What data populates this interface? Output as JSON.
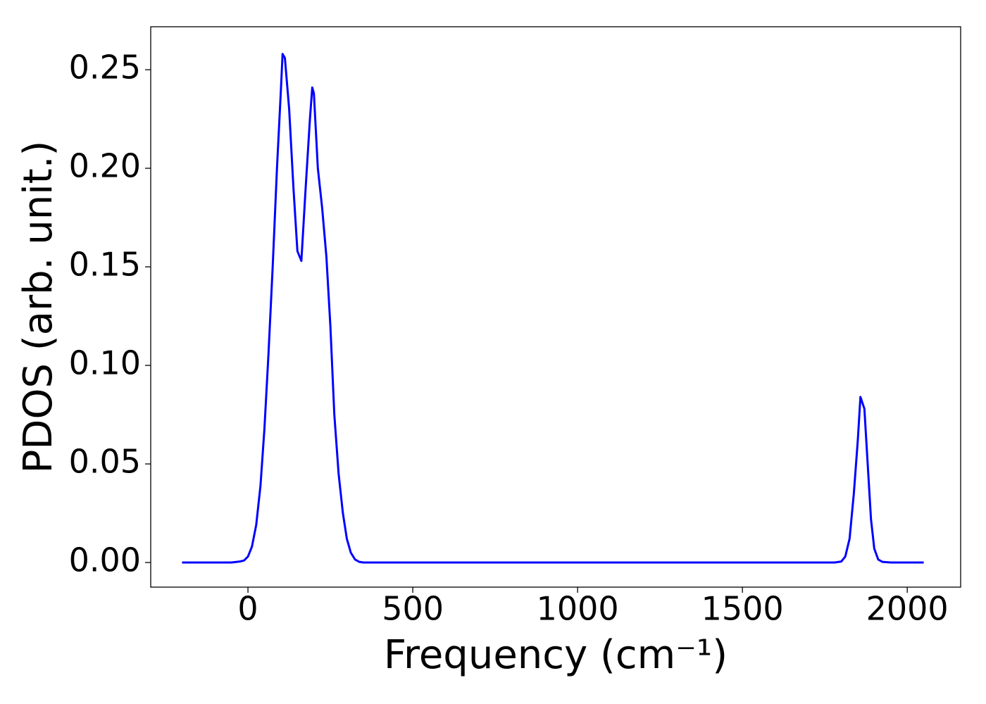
{
  "chart_data": {
    "type": "line",
    "xlabel": "Frequency (cm⁻¹)",
    "ylabel": "PDOS (arb. unit.)",
    "x": [
      -200,
      -150,
      -100,
      -50,
      -25,
      -12,
      0,
      12,
      25,
      38,
      50,
      62,
      75,
      88,
      100,
      105,
      112,
      125,
      138,
      150,
      162,
      175,
      188,
      195,
      200,
      212,
      225,
      238,
      250,
      262,
      275,
      288,
      300,
      312,
      325,
      338,
      350,
      500,
      1000,
      1500,
      1780,
      1800,
      1812,
      1825,
      1838,
      1850,
      1858,
      1870,
      1880,
      1890,
      1900,
      1912,
      1925,
      1950,
      2000,
      2050
    ],
    "series": [
      {
        "color": "#0000ff",
        "values": [
          0,
          0,
          0,
          0,
          0.0005,
          0.001,
          0.003,
          0.008,
          0.019,
          0.039,
          0.068,
          0.105,
          0.15,
          0.2,
          0.24,
          0.258,
          0.256,
          0.23,
          0.19,
          0.158,
          0.153,
          0.19,
          0.225,
          0.241,
          0.238,
          0.2,
          0.18,
          0.155,
          0.12,
          0.075,
          0.045,
          0.025,
          0.012,
          0.005,
          0.0015,
          0.0003,
          0,
          0,
          0,
          0,
          0,
          0.0005,
          0.003,
          0.012,
          0.035,
          0.062,
          0.084,
          0.078,
          0.05,
          0.022,
          0.007,
          0.0015,
          0.0003,
          0,
          0,
          0
        ]
      }
    ],
    "xlim": [
      -295,
      2162
    ],
    "ylim": [
      -0.0125,
      0.2718
    ],
    "xticks": [
      0,
      500,
      1000,
      1500,
      2000
    ],
    "yticks": [
      {
        "value": 0,
        "label": "0.00"
      },
      {
        "value": 0.05,
        "label": "0.05"
      },
      {
        "value": 0.1,
        "label": "0.10"
      },
      {
        "value": 0.15,
        "label": "0.15"
      },
      {
        "value": 0.2,
        "label": "0.20"
      },
      {
        "value": 0.25,
        "label": "0.25"
      }
    ]
  }
}
